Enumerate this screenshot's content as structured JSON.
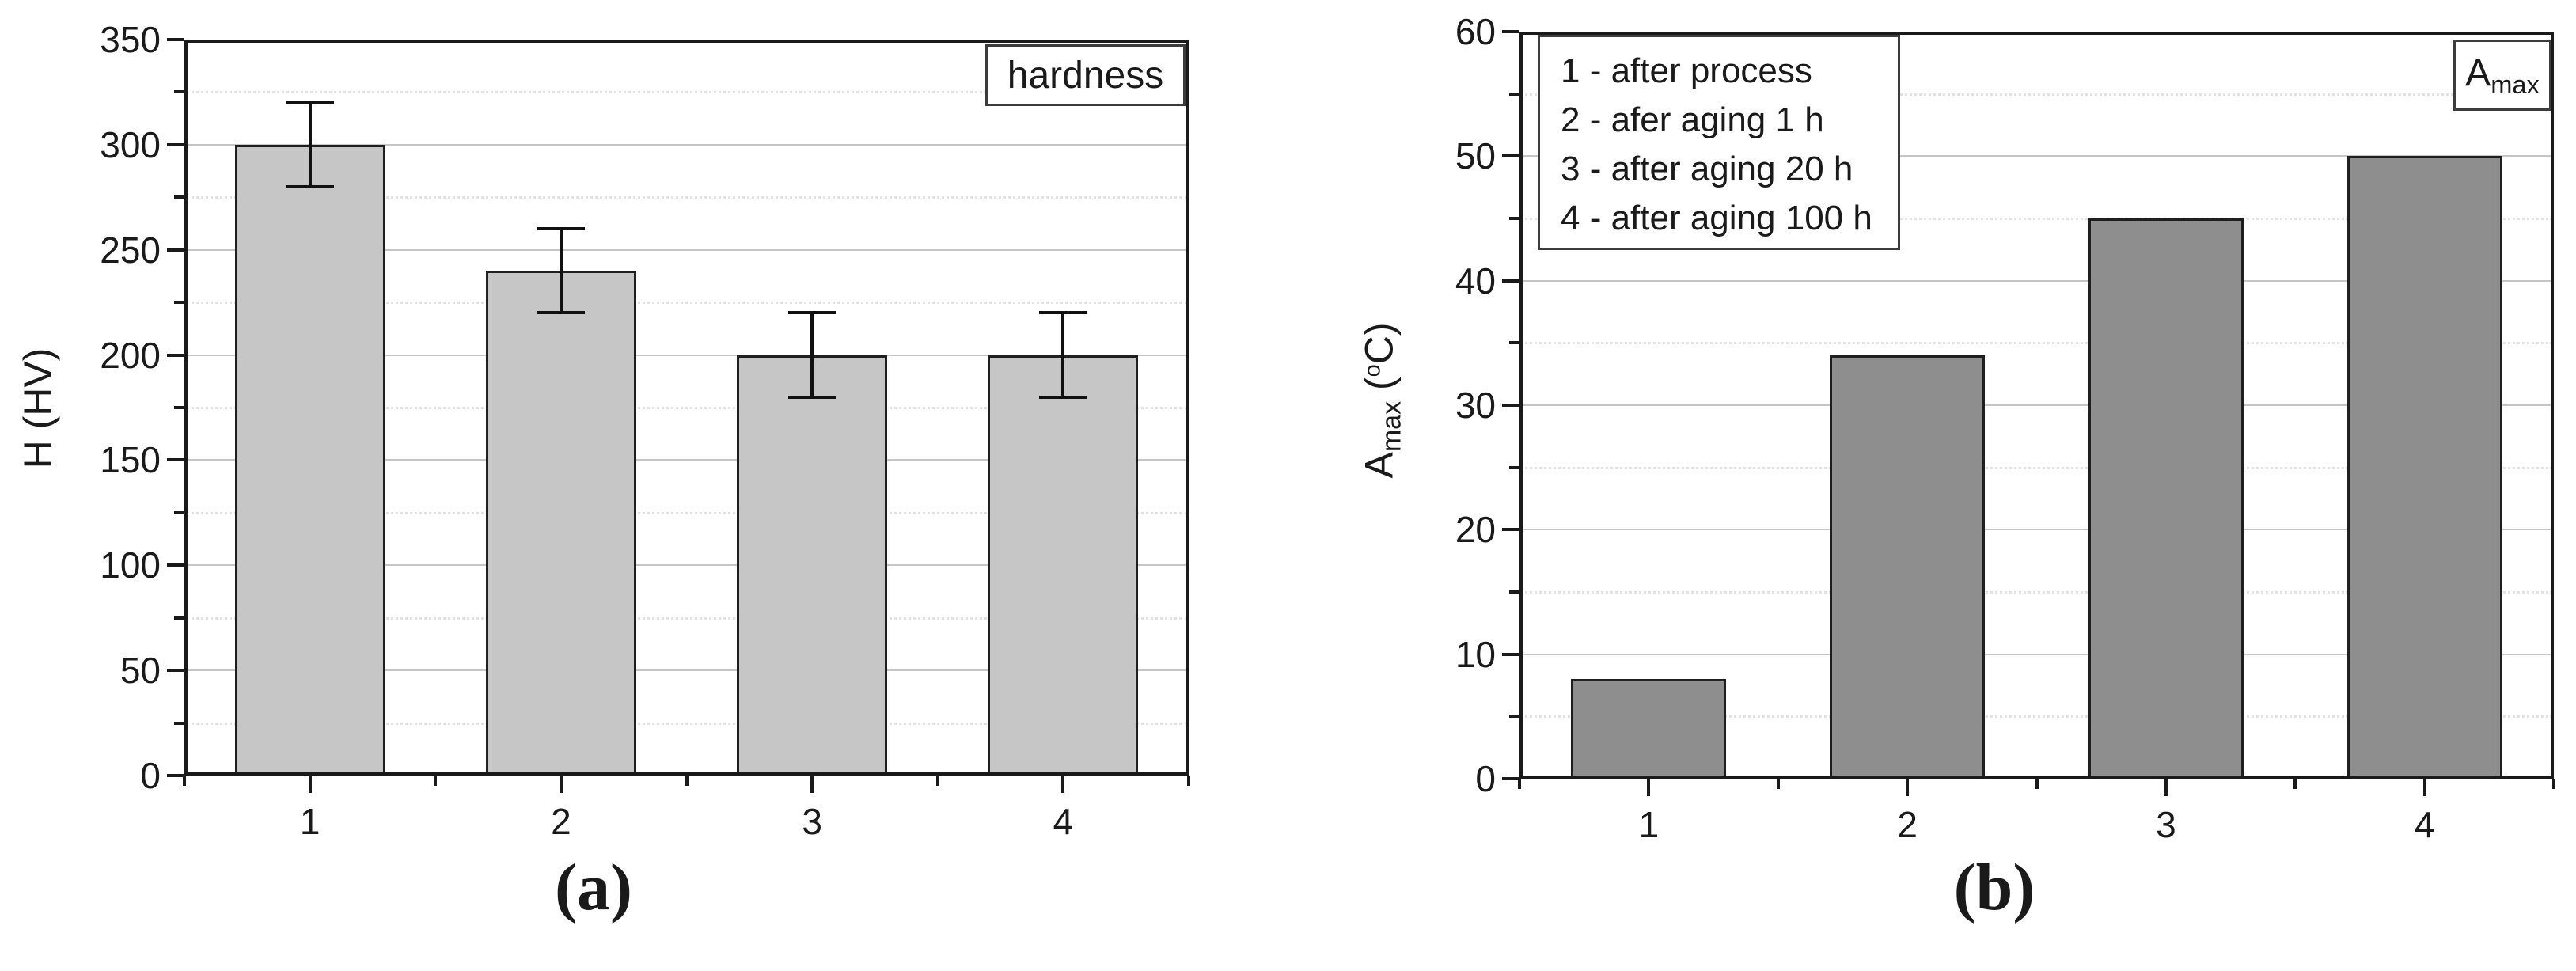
{
  "figure": {
    "captions": {
      "a": "(a)",
      "b": "(b)"
    }
  },
  "chart_data": [
    {
      "id": "hardness",
      "type": "bar",
      "panel": "a",
      "title_box": "hardness",
      "ylabel": "H (HV)",
      "xlabel": "",
      "categories": [
        "1",
        "2",
        "3",
        "4"
      ],
      "values": [
        300,
        240,
        200,
        200
      ],
      "errors": [
        20,
        20,
        20,
        20
      ],
      "ylim": [
        0,
        350
      ],
      "ytick_step": 50,
      "minor_step": 25,
      "yticks": [
        "0",
        "50",
        "100",
        "150",
        "200",
        "250",
        "300",
        "350"
      ],
      "bar_color": "#c6c6c6",
      "grid": "horizontal major solid, minor dotted",
      "legend_position": "top-right"
    },
    {
      "id": "amax",
      "type": "bar",
      "panel": "b",
      "title_box": "Amax",
      "box_label": {
        "base": "A",
        "sub": "max"
      },
      "ylabel": "Amax (°C)",
      "ylabel_parts": {
        "base": "A",
        "sub": "max",
        "open": " (",
        "sup": "o",
        "close": "C)"
      },
      "xlabel": "",
      "categories": [
        "1",
        "2",
        "3",
        "4"
      ],
      "values": [
        8,
        34,
        45,
        50
      ],
      "errors": null,
      "ylim": [
        0,
        60
      ],
      "ytick_step": 10,
      "minor_step": 5,
      "yticks": [
        "0",
        "10",
        "20",
        "30",
        "40",
        "50",
        "60"
      ],
      "bar_color": "#8e8e8e",
      "grid": "horizontal major solid, minor dotted",
      "legend_position": "top-left",
      "legend": [
        "1 - after process",
        "2 - afer aging 1 h",
        "3 - after aging 20 h",
        "4 - after aging 100 h"
      ]
    }
  ]
}
